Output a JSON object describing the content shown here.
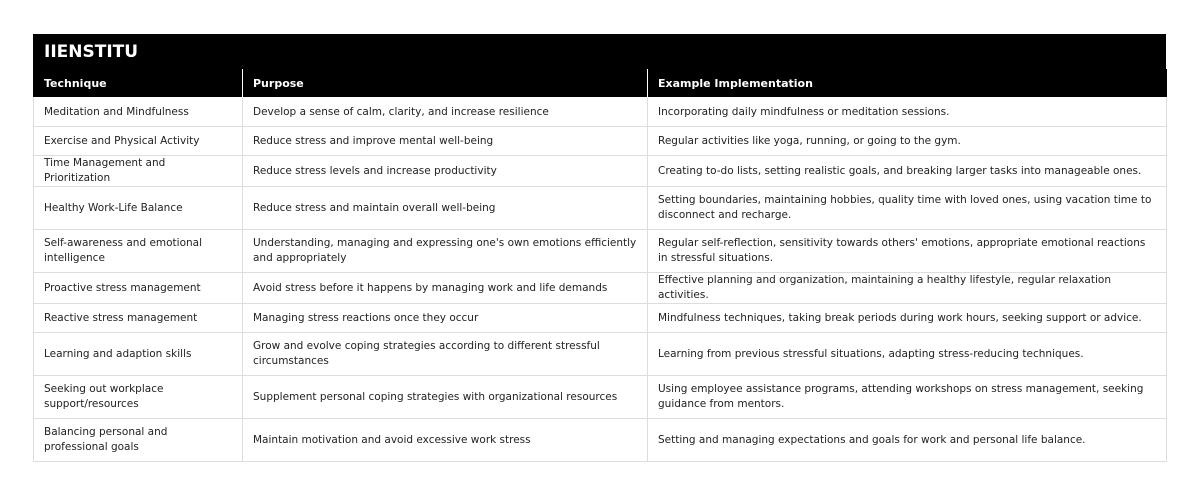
{
  "brand": {
    "title": "IIENSTITU"
  },
  "table": {
    "headers": [
      "Technique",
      "Purpose",
      "Example Implementation"
    ],
    "rows": [
      [
        "Meditation and Mindfulness",
        "Develop a sense of calm, clarity, and increase resilience",
        "Incorporating daily mindfulness or meditation sessions."
      ],
      [
        "Exercise and Physical Activity",
        "Reduce stress and improve mental well-being",
        "Regular activities like yoga, running, or going to the gym."
      ],
      [
        "Time Management and Prioritization",
        "Reduce stress levels and increase productivity",
        "Creating to-do lists, setting realistic goals, and breaking larger tasks into manageable ones."
      ],
      [
        "Healthy Work-Life Balance",
        "Reduce stress and maintain overall well-being",
        "Setting boundaries, maintaining hobbies, quality time with loved ones, using vacation time to disconnect and recharge."
      ],
      [
        "Self-awareness and emotional intelligence",
        "Understanding, managing and expressing one's own emotions efficiently and appropriately",
        "Regular self-reflection, sensitivity towards others' emotions, appropriate emotional reactions in stressful situations."
      ],
      [
        "Proactive stress management",
        "Avoid stress before it happens by managing work and life demands",
        "Effective planning and organization, maintaining a healthy lifestyle, regular relaxation activities."
      ],
      [
        "Reactive stress management",
        "Managing stress reactions once they occur",
        "Mindfulness techniques, taking break periods during work hours, seeking support or advice."
      ],
      [
        "Learning and adaption skills",
        "Grow and evolve coping strategies according to different stressful circumstances",
        "Learning from previous stressful situations, adapting stress-reducing techniques."
      ],
      [
        "Seeking out workplace support/resources",
        "Supplement personal coping strategies with organizational resources",
        "Using employee assistance programs, attending workshops on stress management, seeking guidance from mentors."
      ],
      [
        "Balancing personal and professional goals",
        "Maintain motivation and avoid excessive work stress",
        "Setting and managing expectations and goals for work and personal life balance."
      ]
    ]
  }
}
